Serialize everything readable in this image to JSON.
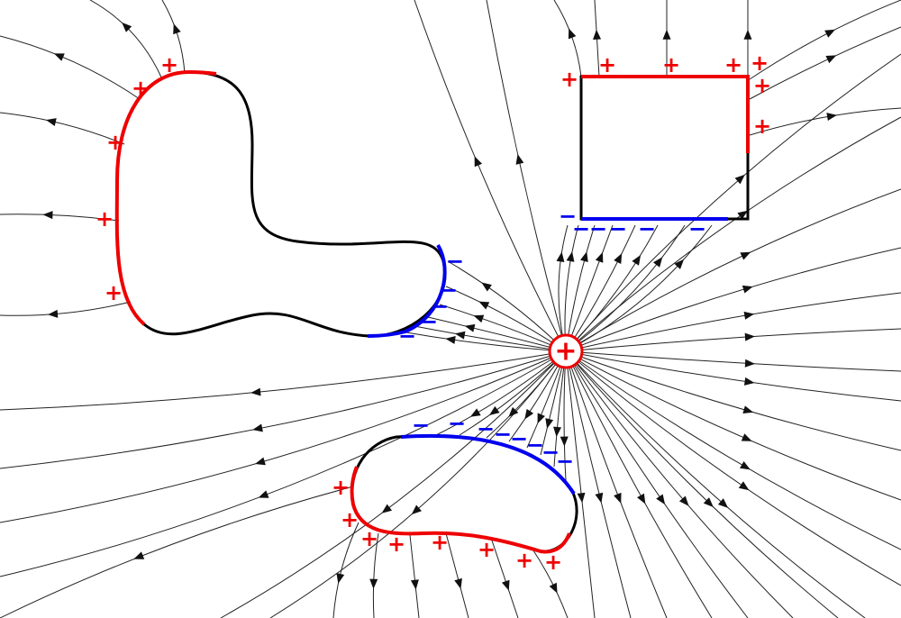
{
  "source": {
    "label": "+"
  },
  "induced_charges": {
    "positive": "+",
    "negative": "−"
  }
}
